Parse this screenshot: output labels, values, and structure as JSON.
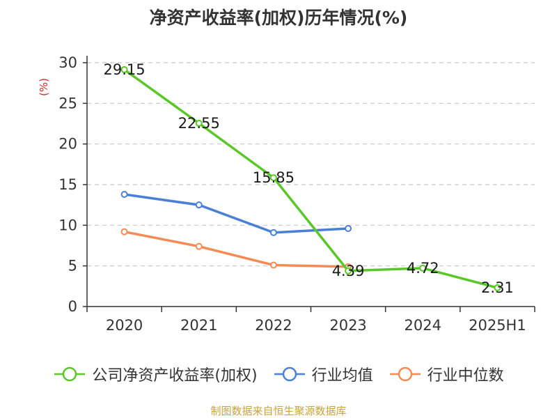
{
  "chart_data": {
    "type": "line",
    "title": "净资产收益率(加权)历年情况(%)",
    "ylabel": "(%)",
    "xlabel": "",
    "categories": [
      "2020",
      "2021",
      "2022",
      "2023",
      "2024",
      "2025H1"
    ],
    "ylim": [
      0,
      30
    ],
    "yticks": [
      0,
      5,
      10,
      15,
      20,
      25,
      30
    ],
    "grid": true,
    "legend_position": "bottom",
    "series": [
      {
        "name": "公司净资产收益率(加权)",
        "color": "#5ac728",
        "values": [
          29.15,
          22.55,
          15.85,
          4.39,
          4.72,
          2.31
        ],
        "data_labels": [
          "29.15",
          "22.55",
          "15.85",
          "4.39",
          "4.72",
          "2.31"
        ]
      },
      {
        "name": "行业均值",
        "color": "#4a7fd6",
        "values": [
          13.8,
          12.5,
          9.1,
          9.6,
          null,
          null
        ]
      },
      {
        "name": "行业中位数",
        "color": "#f48b55",
        "values": [
          9.2,
          7.4,
          5.1,
          4.9,
          null,
          null
        ]
      }
    ],
    "source": "制图数据来自恒生聚源数据库"
  }
}
